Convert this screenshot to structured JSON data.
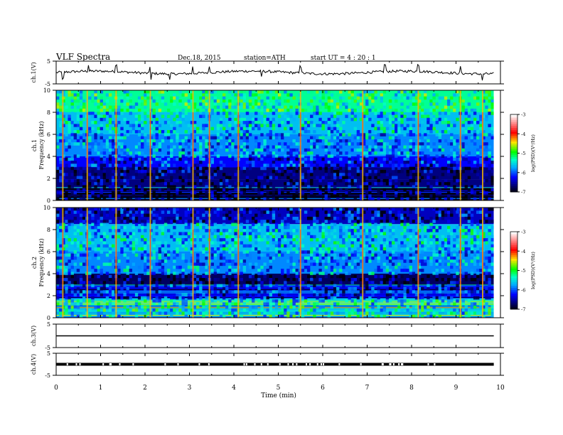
{
  "header": {
    "title": "VLF  Spectra",
    "date": "Dec.18, 2015",
    "station": "station=ATH",
    "start": "start  UT  =   4  : 20 : 1"
  },
  "colorbar": {
    "label": "log(PSD)(V²/Hz)",
    "ticks": [
      "-3",
      "-4",
      "-5",
      "-6",
      "-7"
    ],
    "colors": [
      "#ffffff",
      "#ff0000",
      "#ffcc00",
      "#00ff00",
      "#00ffff",
      "#0000ff",
      "#000080",
      "#000000"
    ]
  },
  "chart_data": [
    {
      "type": "line",
      "name": "ch1-waveform",
      "ylabel": "ch.1(V)",
      "ylim": [
        -5,
        5
      ],
      "yticks": [
        "5",
        "-5"
      ],
      "xlim": [
        0,
        10
      ],
      "baseline": 0,
      "spike_times_min": [
        0.15,
        0.72,
        1.35,
        2.12,
        2.55,
        3.08,
        3.45,
        4.62,
        5.5,
        7.4,
        8.15,
        9.1,
        9.6
      ]
    },
    {
      "type": "heatmap",
      "name": "ch1-spectrogram",
      "ylabel": "ch.1\nFrequency  (kHz)",
      "ylim": [
        0,
        10
      ],
      "yticks": [
        "0",
        "2",
        "4",
        "6",
        "8",
        "10"
      ],
      "xlim": [
        0,
        10
      ],
      "value_range": [
        -7,
        -3
      ],
      "bands_khz": [
        {
          "from": 0,
          "to": 1.2,
          "level": -6.8,
          "striped": true
        },
        {
          "from": 1.2,
          "to": 1.9,
          "level": -6.6
        },
        {
          "from": 1.9,
          "to": 3.0,
          "level": -6.6
        },
        {
          "from": 3.0,
          "to": 4.0,
          "level": -6.2
        },
        {
          "from": 4.0,
          "to": 6.0,
          "level": -5.8
        },
        {
          "from": 6.0,
          "to": 8.0,
          "level": -5.6
        },
        {
          "from": 8.0,
          "to": 10,
          "level": -5.2
        }
      ],
      "burst_times_min": [
        0.15,
        0.7,
        1.35,
        2.12,
        3.08,
        3.45,
        4.1,
        5.5,
        6.9,
        8.15,
        9.1,
        9.6
      ]
    },
    {
      "type": "heatmap",
      "name": "ch2-spectrogram",
      "ylabel": "ch.2\nFrequency  (kHz)",
      "ylim": [
        0,
        10
      ],
      "yticks": [
        "0",
        "2",
        "4",
        "6",
        "8",
        "10"
      ],
      "xlim": [
        0,
        10
      ],
      "value_range": [
        -7,
        -3
      ],
      "bands_khz": [
        {
          "from": 0,
          "to": 1.8,
          "level": -5.4,
          "striped": true
        },
        {
          "from": 1.8,
          "to": 3.0,
          "level": -6.2,
          "striped": true
        },
        {
          "from": 3.0,
          "to": 4.0,
          "level": -6.7
        },
        {
          "from": 4.0,
          "to": 6.0,
          "level": -5.8
        },
        {
          "from": 6.0,
          "to": 8.5,
          "level": -5.6
        },
        {
          "from": 8.5,
          "to": 10,
          "level": -6.4
        }
      ],
      "burst_times_min": [
        0.15,
        0.7,
        1.35,
        2.12,
        3.08,
        3.45,
        4.1,
        5.5,
        6.9,
        8.15,
        9.1,
        9.6
      ]
    },
    {
      "type": "line",
      "name": "ch3-waveform",
      "ylabel": "ch.3(V)",
      "ylim": [
        -5,
        5
      ],
      "yticks": [
        "5",
        "-5"
      ],
      "xlim": [
        0,
        10
      ],
      "baseline": 0
    },
    {
      "type": "line",
      "name": "ch4-waveform",
      "ylabel": "ch.4(V)",
      "ylim": [
        -5,
        5
      ],
      "yticks": [
        "5",
        "-5"
      ],
      "xlim": [
        0,
        10
      ],
      "baseline": 0
    }
  ],
  "xaxis": {
    "label": "Time  (min)",
    "ticks": [
      "0",
      "1",
      "2",
      "3",
      "4",
      "5",
      "6",
      "7",
      "8",
      "9",
      "10"
    ]
  }
}
